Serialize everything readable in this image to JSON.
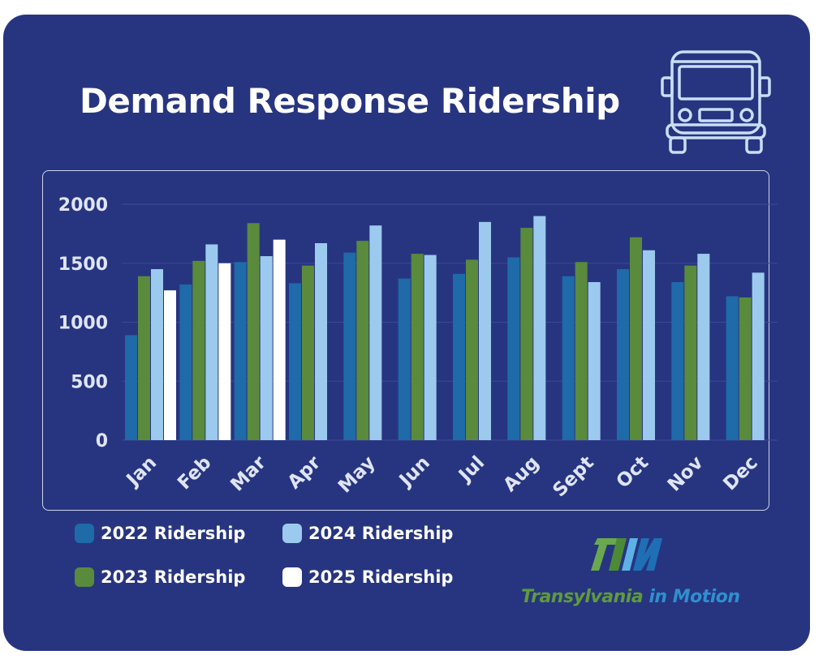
{
  "title": "Demand Response Ridership",
  "icons": {
    "header": "bus-icon",
    "logo": "tim-logo"
  },
  "colors": {
    "background": "#273580",
    "series_2022": "#1f6aa8",
    "series_2023": "#5a8a3c",
    "series_2024": "#9ccaef",
    "series_2025": "#ffffff",
    "axis_text": "#dfe4f5",
    "grid": "#3b4a95"
  },
  "legend": {
    "s2022": "2022 Ridership",
    "s2023": "2023 Ridership",
    "s2024": "2024 Ridership",
    "s2025": "2025 Ridership"
  },
  "logo": {
    "part1": "Transylvania",
    "part2": " in Motion"
  },
  "chart_data": {
    "type": "bar",
    "categories": [
      "Jan",
      "Feb",
      "Mar",
      "Apr",
      "May",
      "Jun",
      "Jul",
      "Aug",
      "Sept",
      "Oct",
      "Nov",
      "Dec"
    ],
    "series": [
      {
        "name": "2022 Ridership",
        "values": [
          890,
          1320,
          1510,
          1330,
          1590,
          1370,
          1410,
          1550,
          1390,
          1450,
          1340,
          1220
        ]
      },
      {
        "name": "2023 Ridership",
        "values": [
          1390,
          1520,
          1840,
          1480,
          1690,
          1580,
          1530,
          1800,
          1510,
          1720,
          1480,
          1210
        ]
      },
      {
        "name": "2024 Ridership",
        "values": [
          1450,
          1660,
          1560,
          1670,
          1820,
          1570,
          1850,
          1900,
          1340,
          1610,
          1580,
          1420
        ]
      },
      {
        "name": "2025 Ridership",
        "values": [
          1270,
          1500,
          1700,
          null,
          null,
          null,
          null,
          null,
          null,
          null,
          null,
          null
        ]
      }
    ],
    "yticks": [
      "0",
      "500",
      "1000",
      "1500",
      "2000"
    ],
    "ylim": [
      0,
      2000
    ],
    "grid": true,
    "legend_position": "bottom-left"
  }
}
